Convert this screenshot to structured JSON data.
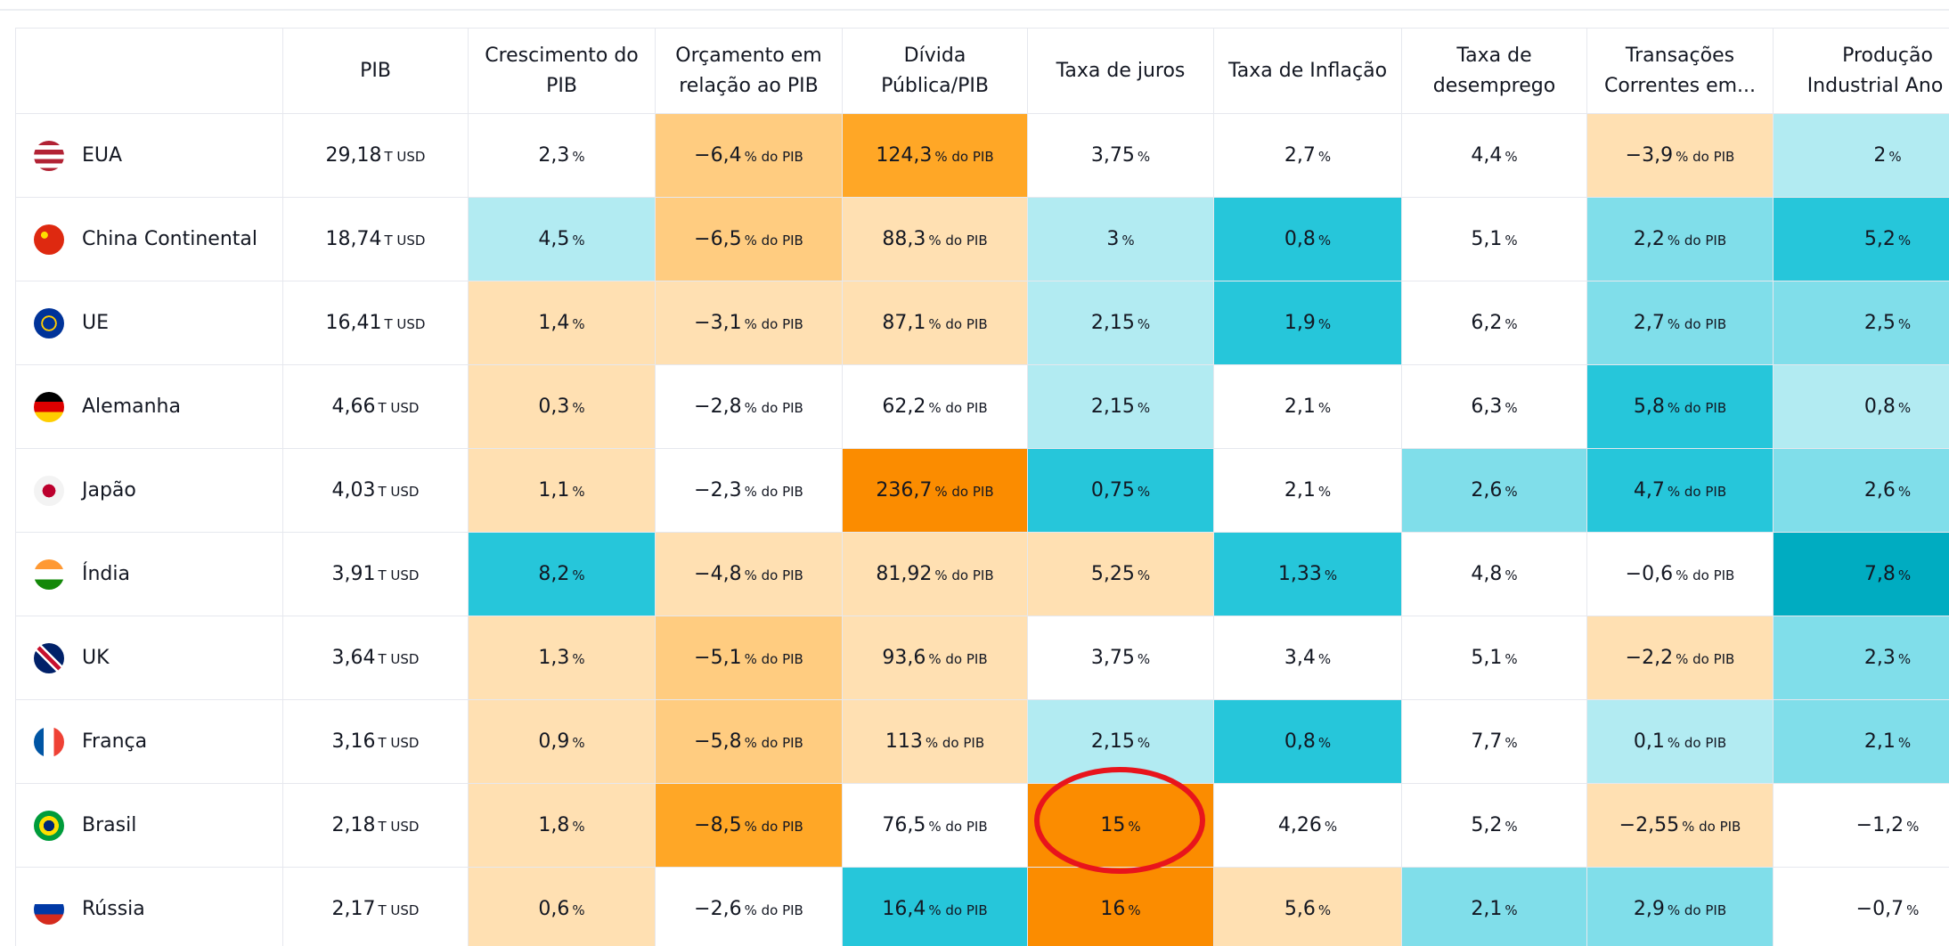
{
  "table": {
    "headers": [
      [],
      [
        "PIB"
      ],
      [
        "Crescimento do",
        "PIB"
      ],
      [
        "Orçamento em",
        "relação ao PIB"
      ],
      [
        "Dívida",
        "Pública/PIB"
      ],
      [
        "Taxa de juros"
      ],
      [
        "Taxa de Inflação"
      ],
      [
        "Taxa de",
        "desemprego"
      ],
      [
        "Transações",
        "Correntes em..."
      ],
      [
        "Produção",
        "Industrial Ano ..."
      ]
    ],
    "rows": [
      {
        "country": "EUA",
        "cells": [
          {
            "value": "29,18",
            "unit": "T USD",
            "color": "#ffffff"
          },
          {
            "value": "2,3",
            "unit": "%",
            "color": "#ffffff"
          },
          {
            "value": "−6,4",
            "unit": "% do PIB",
            "color": "#ffcc80"
          },
          {
            "value": "124,3",
            "unit": "% do PIB",
            "color": "#ffa726"
          },
          {
            "value": "3,75",
            "unit": "%",
            "color": "#ffffff"
          },
          {
            "value": "2,7",
            "unit": "%",
            "color": "#ffffff"
          },
          {
            "value": "4,4",
            "unit": "%",
            "color": "#ffffff"
          },
          {
            "value": "−3,9",
            "unit": "% do PIB",
            "color": "#ffe0b2"
          },
          {
            "value": "2",
            "unit": "%",
            "color": "#b2ebf2"
          }
        ]
      },
      {
        "country": "China Continental",
        "cells": [
          {
            "value": "18,74",
            "unit": "T USD",
            "color": "#ffffff"
          },
          {
            "value": "4,5",
            "unit": "%",
            "color": "#b2ebf2"
          },
          {
            "value": "−6,5",
            "unit": "% do PIB",
            "color": "#ffcc80"
          },
          {
            "value": "88,3",
            "unit": "% do PIB",
            "color": "#ffe0b2"
          },
          {
            "value": "3",
            "unit": "%",
            "color": "#b2ebf2"
          },
          {
            "value": "0,8",
            "unit": "%",
            "color": "#26c6da"
          },
          {
            "value": "5,1",
            "unit": "%",
            "color": "#ffffff"
          },
          {
            "value": "2,2",
            "unit": "% do PIB",
            "color": "#80deea"
          },
          {
            "value": "5,2",
            "unit": "%",
            "color": "#26c6da"
          }
        ]
      },
      {
        "country": "UE",
        "cells": [
          {
            "value": "16,41",
            "unit": "T USD",
            "color": "#ffffff"
          },
          {
            "value": "1,4",
            "unit": "%",
            "color": "#ffe0b2"
          },
          {
            "value": "−3,1",
            "unit": "% do PIB",
            "color": "#ffe0b2"
          },
          {
            "value": "87,1",
            "unit": "% do PIB",
            "color": "#ffe0b2"
          },
          {
            "value": "2,15",
            "unit": "%",
            "color": "#b2ebf2"
          },
          {
            "value": "1,9",
            "unit": "%",
            "color": "#26c6da"
          },
          {
            "value": "6,2",
            "unit": "%",
            "color": "#ffffff"
          },
          {
            "value": "2,7",
            "unit": "% do PIB",
            "color": "#80deea"
          },
          {
            "value": "2,5",
            "unit": "%",
            "color": "#80deea"
          }
        ]
      },
      {
        "country": "Alemanha",
        "cells": [
          {
            "value": "4,66",
            "unit": "T USD",
            "color": "#ffffff"
          },
          {
            "value": "0,3",
            "unit": "%",
            "color": "#ffe0b2"
          },
          {
            "value": "−2,8",
            "unit": "% do PIB",
            "color": "#ffffff"
          },
          {
            "value": "62,2",
            "unit": "% do PIB",
            "color": "#ffffff"
          },
          {
            "value": "2,15",
            "unit": "%",
            "color": "#b2ebf2"
          },
          {
            "value": "2,1",
            "unit": "%",
            "color": "#ffffff"
          },
          {
            "value": "6,3",
            "unit": "%",
            "color": "#ffffff"
          },
          {
            "value": "5,8",
            "unit": "% do PIB",
            "color": "#26c6da"
          },
          {
            "value": "0,8",
            "unit": "%",
            "color": "#b2ebf2"
          }
        ]
      },
      {
        "country": "Japão",
        "cells": [
          {
            "value": "4,03",
            "unit": "T USD",
            "color": "#ffffff"
          },
          {
            "value": "1,1",
            "unit": "%",
            "color": "#ffe0b2"
          },
          {
            "value": "−2,3",
            "unit": "% do PIB",
            "color": "#ffffff"
          },
          {
            "value": "236,7",
            "unit": "% do PIB",
            "color": "#fb8c00"
          },
          {
            "value": "0,75",
            "unit": "%",
            "color": "#26c6da"
          },
          {
            "value": "2,1",
            "unit": "%",
            "color": "#ffffff"
          },
          {
            "value": "2,6",
            "unit": "%",
            "color": "#80deea"
          },
          {
            "value": "4,7",
            "unit": "% do PIB",
            "color": "#26c6da"
          },
          {
            "value": "2,6",
            "unit": "%",
            "color": "#80deea"
          }
        ]
      },
      {
        "country": "Índia",
        "cells": [
          {
            "value": "3,91",
            "unit": "T USD",
            "color": "#ffffff"
          },
          {
            "value": "8,2",
            "unit": "%",
            "color": "#26c6da"
          },
          {
            "value": "−4,8",
            "unit": "% do PIB",
            "color": "#ffe0b2"
          },
          {
            "value": "81,92",
            "unit": "% do PIB",
            "color": "#ffe0b2"
          },
          {
            "value": "5,25",
            "unit": "%",
            "color": "#ffe0b2"
          },
          {
            "value": "1,33",
            "unit": "%",
            "color": "#26c6da"
          },
          {
            "value": "4,8",
            "unit": "%",
            "color": "#ffffff"
          },
          {
            "value": "−0,6",
            "unit": "% do PIB",
            "color": "#ffffff"
          },
          {
            "value": "7,8",
            "unit": "%",
            "color": "#00acc1"
          }
        ]
      },
      {
        "country": "UK",
        "cells": [
          {
            "value": "3,64",
            "unit": "T USD",
            "color": "#ffffff"
          },
          {
            "value": "1,3",
            "unit": "%",
            "color": "#ffe0b2"
          },
          {
            "value": "−5,1",
            "unit": "% do PIB",
            "color": "#ffcc80"
          },
          {
            "value": "93,6",
            "unit": "% do PIB",
            "color": "#ffe0b2"
          },
          {
            "value": "3,75",
            "unit": "%",
            "color": "#ffffff"
          },
          {
            "value": "3,4",
            "unit": "%",
            "color": "#ffffff"
          },
          {
            "value": "5,1",
            "unit": "%",
            "color": "#ffffff"
          },
          {
            "value": "−2,2",
            "unit": "% do PIB",
            "color": "#ffe0b2"
          },
          {
            "value": "2,3",
            "unit": "%",
            "color": "#80deea"
          }
        ]
      },
      {
        "country": "França",
        "cells": [
          {
            "value": "3,16",
            "unit": "T USD",
            "color": "#ffffff"
          },
          {
            "value": "0,9",
            "unit": "%",
            "color": "#ffe0b2"
          },
          {
            "value": "−5,8",
            "unit": "% do PIB",
            "color": "#ffcc80"
          },
          {
            "value": "113",
            "unit": "% do PIB",
            "color": "#ffe0b2"
          },
          {
            "value": "2,15",
            "unit": "%",
            "color": "#b2ebf2"
          },
          {
            "value": "0,8",
            "unit": "%",
            "color": "#26c6da"
          },
          {
            "value": "7,7",
            "unit": "%",
            "color": "#ffffff"
          },
          {
            "value": "0,1",
            "unit": "% do PIB",
            "color": "#b2ebf2"
          },
          {
            "value": "2,1",
            "unit": "%",
            "color": "#80deea"
          }
        ]
      },
      {
        "country": "Brasil",
        "cells": [
          {
            "value": "2,18",
            "unit": "T USD",
            "color": "#ffffff"
          },
          {
            "value": "1,8",
            "unit": "%",
            "color": "#ffe0b2"
          },
          {
            "value": "−8,5",
            "unit": "% do PIB",
            "color": "#ffa726"
          },
          {
            "value": "76,5",
            "unit": "% do PIB",
            "color": "#ffffff"
          },
          {
            "value": "15",
            "unit": "%",
            "color": "#fb8c00"
          },
          {
            "value": "4,26",
            "unit": "%",
            "color": "#ffffff"
          },
          {
            "value": "5,2",
            "unit": "%",
            "color": "#ffffff"
          },
          {
            "value": "−2,55",
            "unit": "% do PIB",
            "color": "#ffe0b2"
          },
          {
            "value": "−1,2",
            "unit": "%",
            "color": "#ffffff"
          }
        ]
      },
      {
        "country": "Rússia",
        "cells": [
          {
            "value": "2,17",
            "unit": "T USD",
            "color": "#ffffff"
          },
          {
            "value": "0,6",
            "unit": "%",
            "color": "#ffe0b2"
          },
          {
            "value": "−2,6",
            "unit": "% do PIB",
            "color": "#ffffff"
          },
          {
            "value": "16,4",
            "unit": "% do PIB",
            "color": "#26c6da"
          },
          {
            "value": "16",
            "unit": "%",
            "color": "#fb8c00"
          },
          {
            "value": "5,6",
            "unit": "%",
            "color": "#ffe0b2"
          },
          {
            "value": "2,1",
            "unit": "%",
            "color": "#80deea"
          },
          {
            "value": "2,9",
            "unit": "% do PIB",
            "color": "#80deea"
          },
          {
            "value": "−0,7",
            "unit": "%",
            "color": "#ffffff"
          }
        ]
      }
    ]
  }
}
